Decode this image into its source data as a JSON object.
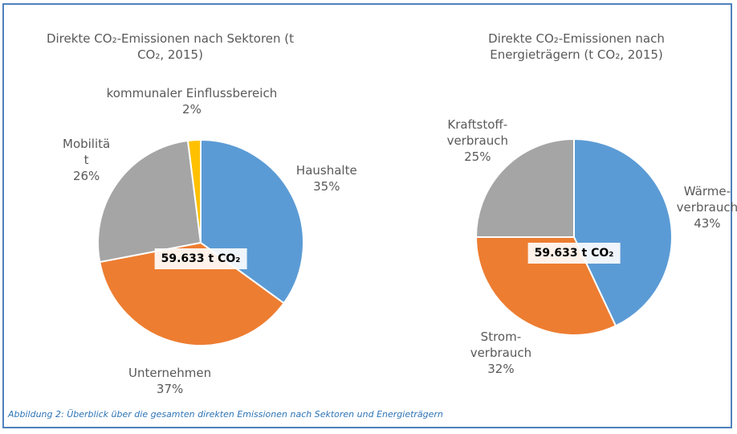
{
  "chart_data": [
    {
      "type": "pie",
      "title": "Direkte CO₂-Emissionen nach Sektoren (t CO₂, 2015)",
      "center_label": "59.633 t CO₂",
      "categories": [
        "Haushalte",
        "Unternehmen",
        "Mobilitä\nt",
        "kommunaler Einflussbereich"
      ],
      "values": [
        35,
        37,
        26,
        2
      ],
      "value_labels": [
        "35%",
        "37%",
        "26%",
        "2%"
      ],
      "colors": [
        "#5b9bd5",
        "#ed7d31",
        "#a5a5a5",
        "#ffc000"
      ]
    },
    {
      "type": "pie",
      "title": "Direkte CO₂-Emissionen nach Energieträgern (t CO₂, 2015)",
      "center_label": "59.633 t CO₂",
      "categories": [
        "Wärme-\nverbrauch",
        "Strom-\nverbrauch",
        "Kraftstoff-\nverbrauch"
      ],
      "values": [
        43,
        32,
        25
      ],
      "value_labels": [
        "43%",
        "32%",
        "25%"
      ],
      "colors": [
        "#5b9bd5",
        "#ed7d31",
        "#a5a5a5"
      ]
    }
  ],
  "caption": "Abbildung 2: Überblick über die gesamten direkten Emissionen nach Sektoren und Energieträgern"
}
